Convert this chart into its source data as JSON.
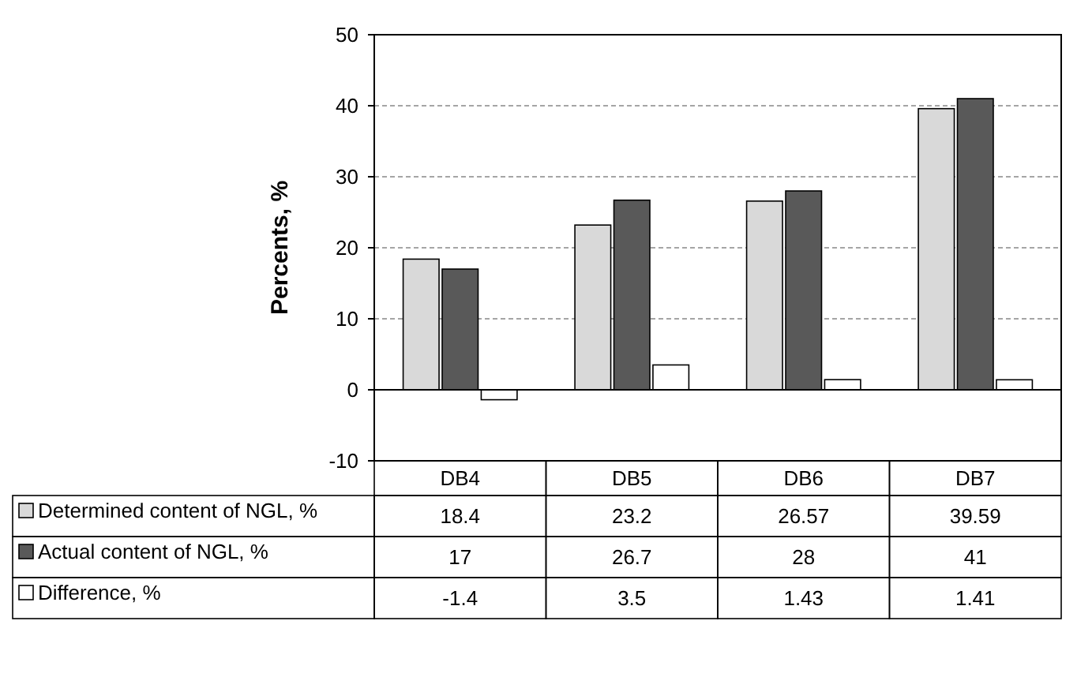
{
  "chart_data": {
    "type": "bar",
    "ylabel": "Percents, %",
    "categories": [
      "DB4",
      "DB5",
      "DB6",
      "DB7"
    ],
    "series": [
      {
        "name": "Determined content of NGL, %",
        "color": "#d9d9d9",
        "values": [
          18.4,
          23.2,
          26.57,
          39.59
        ]
      },
      {
        "name": "Actual content of NGL, %",
        "color": "#595959",
        "values": [
          17,
          26.7,
          28,
          41
        ]
      },
      {
        "name": "Difference, %",
        "color": "#ffffff",
        "values": [
          -1.4,
          3.5,
          1.43,
          1.41
        ]
      }
    ],
    "ylim": [
      -10,
      50
    ],
    "yticks": [
      -10,
      0,
      10,
      20,
      30,
      40,
      50
    ],
    "grid": "y",
    "legend": "bottom",
    "data_labels": true
  }
}
